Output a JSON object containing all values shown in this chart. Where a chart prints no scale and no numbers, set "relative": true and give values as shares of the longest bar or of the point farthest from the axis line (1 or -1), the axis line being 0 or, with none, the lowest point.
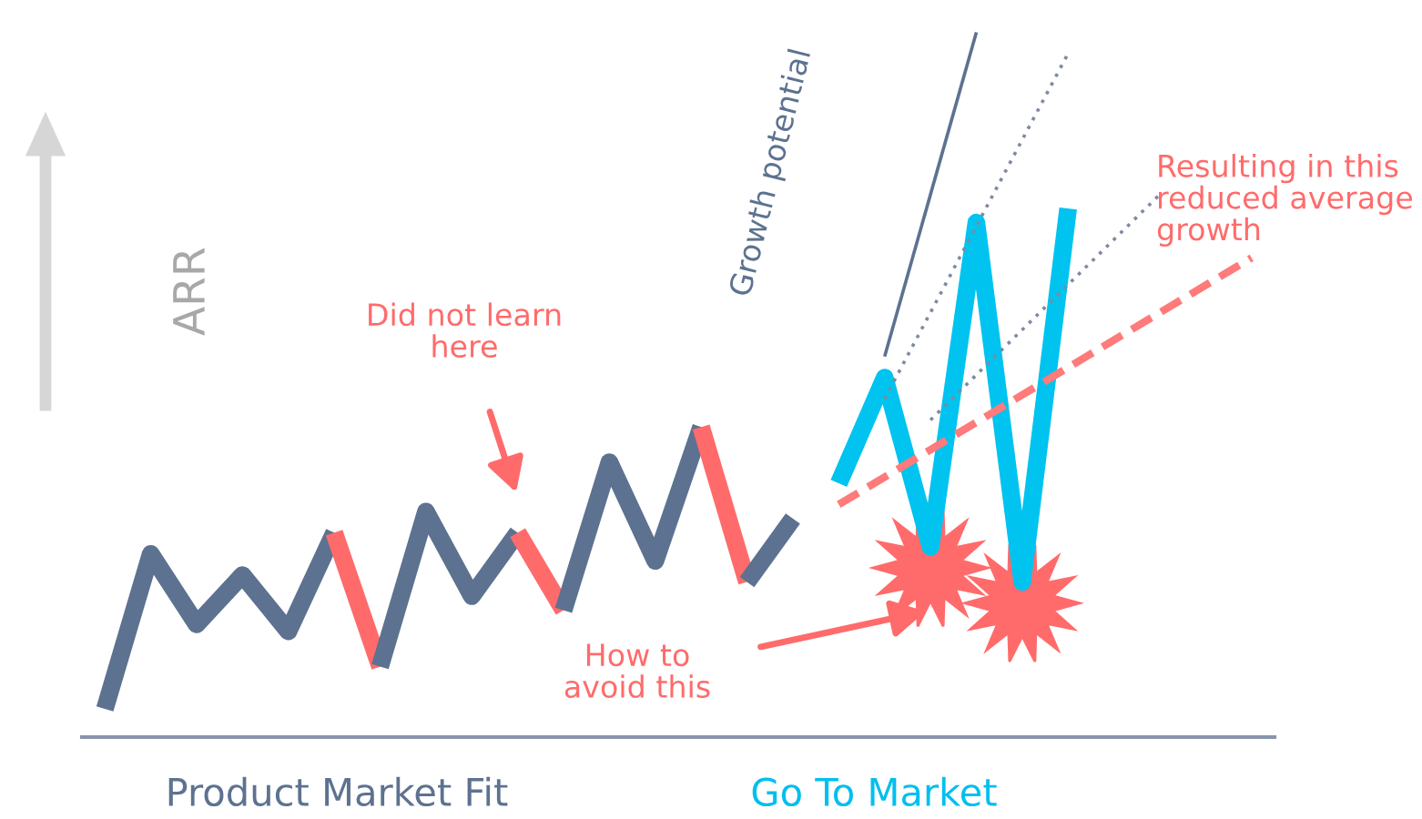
{
  "chart_data": {
    "type": "line",
    "relative": true,
    "ylabel": "ARR",
    "categories": [
      null,
      null,
      null,
      null,
      null,
      null,
      null,
      null,
      null,
      null,
      null,
      null,
      null,
      null,
      null,
      null,
      null,
      null,
      null,
      null,
      null,
      null,
      null,
      null,
      null,
      null
    ],
    "series": [
      {
        "color": "#5d7290",
        "values": [
          0.04,
          0.26,
          0.16,
          0.23,
          0.15,
          0.29,
          null,
          null,
          null,
          null,
          null,
          null,
          null,
          null,
          null,
          null,
          null,
          null,
          null,
          null,
          null,
          null,
          null,
          null,
          null,
          null
        ]
      },
      {
        "color": "#ff6b6b",
        "values": [
          null,
          null,
          null,
          null,
          null,
          0.29,
          0.1,
          null,
          null,
          null,
          null,
          null,
          null,
          null,
          null,
          null,
          null,
          null,
          null,
          null,
          null,
          null,
          null,
          null,
          null,
          null
        ]
      },
      {
        "color": "#5d7290",
        "values": [
          null,
          null,
          null,
          null,
          null,
          null,
          0.1,
          0.32,
          0.2,
          0.29,
          null,
          null,
          null,
          null,
          null,
          null,
          null,
          null,
          null,
          null,
          null,
          null,
          null,
          null,
          null,
          null
        ]
      },
      {
        "color": "#ff6b6b",
        "values": [
          null,
          null,
          null,
          null,
          null,
          null,
          null,
          null,
          null,
          0.29,
          0.18,
          null,
          null,
          null,
          null,
          null,
          null,
          null,
          null,
          null,
          null,
          null,
          null,
          null,
          null,
          null
        ]
      },
      {
        "color": "#5d7290",
        "values": [
          null,
          null,
          null,
          null,
          null,
          null,
          null,
          null,
          null,
          null,
          0.18,
          0.39,
          0.25,
          0.44,
          null,
          null,
          null,
          null,
          null,
          null,
          null,
          null,
          null,
          null,
          null,
          null
        ]
      },
      {
        "color": "#ff6b6b",
        "values": [
          null,
          null,
          null,
          null,
          null,
          null,
          null,
          null,
          null,
          null,
          null,
          null,
          null,
          0.44,
          0.22,
          null,
          null,
          null,
          null,
          null,
          null,
          null,
          null,
          null,
          null,
          null
        ]
      },
      {
        "color": "#5d7290",
        "values": [
          null,
          null,
          null,
          null,
          null,
          null,
          null,
          null,
          null,
          null,
          null,
          null,
          null,
          null,
          0.22,
          0.31,
          null,
          null,
          null,
          null,
          null,
          null,
          null,
          null,
          null,
          null
        ]
      },
      {
        "color": "#00c3f0",
        "values": [
          null,
          null,
          null,
          null,
          null,
          null,
          null,
          null,
          null,
          null,
          null,
          null,
          null,
          null,
          null,
          null,
          0.36,
          0.51,
          0.27,
          0.73,
          0.22,
          0.75,
          null,
          null,
          null,
          null
        ]
      },
      {
        "color": "#ff7a7a",
        "line_style": "dashed",
        "values": [
          null,
          null,
          null,
          null,
          null,
          null,
          null,
          null,
          null,
          null,
          null,
          null,
          null,
          null,
          null,
          null,
          0.33,
          null,
          null,
          null,
          null,
          null,
          null,
          null,
          null,
          0.68
        ]
      },
      {
        "color": "#5d7290",
        "line_style": "solid",
        "values": [
          null,
          null,
          null,
          null,
          null,
          null,
          null,
          null,
          null,
          null,
          null,
          null,
          null,
          null,
          null,
          null,
          null,
          0.54,
          null,
          1.0,
          null,
          null,
          null,
          null,
          null,
          null
        ]
      },
      {
        "color": "#7d8aa0",
        "line_style": "dotted",
        "values": [
          null,
          null,
          null,
          null,
          null,
          null,
          null,
          null,
          null,
          null,
          null,
          null,
          null,
          null,
          null,
          null,
          null,
          0.48,
          null,
          null,
          null,
          0.97,
          null,
          null,
          null,
          null
        ]
      },
      {
        "color": "#7d8aa0",
        "line_style": "dotted",
        "values": [
          null,
          null,
          null,
          null,
          null,
          null,
          null,
          null,
          null,
          null,
          null,
          null,
          null,
          null,
          null,
          null,
          null,
          null,
          0.45,
          null,
          null,
          null,
          null,
          0.77,
          null,
          null
        ]
      }
    ],
    "annotations": [
      "Did not learn\nhere",
      "How to\navoid this",
      "Resulting in this\nreduced average\ngrowth",
      "Growth potential",
      "Product Market Fit",
      "Go To Market"
    ]
  }
}
